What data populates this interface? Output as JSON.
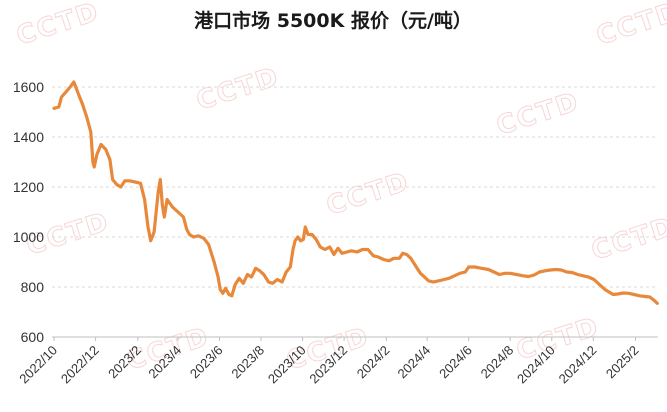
{
  "watermark": "CCTD",
  "chart_data": {
    "type": "line",
    "title": "港口市场 5500K 报价（元/吨）",
    "xlabel": "",
    "ylabel": "",
    "ylim": [
      600,
      1700
    ],
    "yticks": [
      600,
      800,
      1000,
      1200,
      1400,
      1600
    ],
    "x_ticks": [
      "2022/10",
      "2022/12",
      "2023/2",
      "2023/4",
      "2023/6",
      "2023/8",
      "2023/10",
      "2023/12",
      "2024/2",
      "2024/4",
      "2024/6",
      "2024/8",
      "2024/10",
      "2024/12",
      "2025/2"
    ],
    "grid": true,
    "colors": {
      "line": "#e8883a",
      "watermark": "#f3c9c9"
    },
    "series": [
      {
        "values": [
          [
            "2022-10-01",
            1515
          ],
          [
            "2022-10-08",
            1520
          ],
          [
            "2022-10-12",
            1560
          ],
          [
            "2022-10-20",
            1585
          ],
          [
            "2022-10-26",
            1605
          ],
          [
            "2022-10-30",
            1620
          ],
          [
            "2022-11-02",
            1600
          ],
          [
            "2022-11-06",
            1570
          ],
          [
            "2022-11-12",
            1530
          ],
          [
            "2022-11-18",
            1480
          ],
          [
            "2022-11-24",
            1420
          ],
          [
            "2022-11-27",
            1300
          ],
          [
            "2022-11-29",
            1280
          ],
          [
            "2022-12-03",
            1330
          ],
          [
            "2022-12-09",
            1370
          ],
          [
            "2022-12-16",
            1350
          ],
          [
            "2022-12-22",
            1310
          ],
          [
            "2022-12-26",
            1230
          ],
          [
            "2023-01-01",
            1210
          ],
          [
            "2023-01-07",
            1200
          ],
          [
            "2023-01-13",
            1225
          ],
          [
            "2023-01-20",
            1225
          ],
          [
            "2023-01-28",
            1220
          ],
          [
            "2023-02-05",
            1215
          ],
          [
            "2023-02-11",
            1150
          ],
          [
            "2023-02-16",
            1040
          ],
          [
            "2023-02-20",
            985
          ],
          [
            "2023-02-25",
            1020
          ],
          [
            "2023-03-03",
            1180
          ],
          [
            "2023-03-06",
            1230
          ],
          [
            "2023-03-09",
            1130
          ],
          [
            "2023-03-12",
            1080
          ],
          [
            "2023-03-16",
            1150
          ],
          [
            "2023-03-24",
            1120
          ],
          [
            "2023-04-01",
            1100
          ],
          [
            "2023-04-09",
            1080
          ],
          [
            "2023-04-14",
            1030
          ],
          [
            "2023-04-18",
            1010
          ],
          [
            "2023-04-24",
            1000
          ],
          [
            "2023-05-01",
            1005
          ],
          [
            "2023-05-09",
            995
          ],
          [
            "2023-05-16",
            970
          ],
          [
            "2023-05-24",
            900
          ],
          [
            "2023-05-30",
            840
          ],
          [
            "2023-06-02",
            790
          ],
          [
            "2023-06-06",
            775
          ],
          [
            "2023-06-10",
            795
          ],
          [
            "2023-06-15",
            770
          ],
          [
            "2023-06-19",
            765
          ],
          [
            "2023-06-24",
            810
          ],
          [
            "2023-06-30",
            835
          ],
          [
            "2023-07-06",
            815
          ],
          [
            "2023-07-12",
            850
          ],
          [
            "2023-07-18",
            840
          ],
          [
            "2023-07-24",
            875
          ],
          [
            "2023-07-30",
            865
          ],
          [
            "2023-08-05",
            850
          ],
          [
            "2023-08-12",
            820
          ],
          [
            "2023-08-18",
            815
          ],
          [
            "2023-08-25",
            830
          ],
          [
            "2023-09-01",
            820
          ],
          [
            "2023-09-07",
            860
          ],
          [
            "2023-09-13",
            880
          ],
          [
            "2023-09-17",
            950
          ],
          [
            "2023-09-20",
            985
          ],
          [
            "2023-09-24",
            1000
          ],
          [
            "2023-09-28",
            985
          ],
          [
            "2023-10-02",
            990
          ],
          [
            "2023-10-05",
            1040
          ],
          [
            "2023-10-09",
            1010
          ],
          [
            "2023-10-15",
            1010
          ],
          [
            "2023-10-21",
            990
          ],
          [
            "2023-10-27",
            960
          ],
          [
            "2023-11-03",
            950
          ],
          [
            "2023-11-10",
            960
          ],
          [
            "2023-11-16",
            930
          ],
          [
            "2023-11-22",
            955
          ],
          [
            "2023-11-28",
            935
          ],
          [
            "2023-12-05",
            940
          ],
          [
            "2023-12-12",
            945
          ],
          [
            "2023-12-20",
            940
          ],
          [
            "2023-12-28",
            950
          ],
          [
            "2024-01-05",
            950
          ],
          [
            "2024-01-13",
            925
          ],
          [
            "2024-01-20",
            920
          ],
          [
            "2024-01-28",
            910
          ],
          [
            "2024-02-05",
            905
          ],
          [
            "2024-02-12",
            915
          ],
          [
            "2024-02-20",
            915
          ],
          [
            "2024-02-25",
            935
          ],
          [
            "2024-03-02",
            930
          ],
          [
            "2024-03-08",
            915
          ],
          [
            "2024-03-16",
            880
          ],
          [
            "2024-03-22",
            855
          ],
          [
            "2024-03-28",
            840
          ],
          [
            "2024-04-03",
            825
          ],
          [
            "2024-04-10",
            820
          ],
          [
            "2024-04-18",
            825
          ],
          [
            "2024-04-26",
            830
          ],
          [
            "2024-05-03",
            835
          ],
          [
            "2024-05-11",
            845
          ],
          [
            "2024-05-19",
            855
          ],
          [
            "2024-05-27",
            860
          ],
          [
            "2024-06-01",
            880
          ],
          [
            "2024-06-10",
            880
          ],
          [
            "2024-06-20",
            875
          ],
          [
            "2024-06-30",
            870
          ],
          [
            "2024-07-08",
            860
          ],
          [
            "2024-07-16",
            850
          ],
          [
            "2024-07-24",
            855
          ],
          [
            "2024-08-01",
            855
          ],
          [
            "2024-08-10",
            850
          ],
          [
            "2024-08-20",
            845
          ],
          [
            "2024-08-28",
            842
          ],
          [
            "2024-09-05",
            848
          ],
          [
            "2024-09-13",
            860
          ],
          [
            "2024-09-21",
            865
          ],
          [
            "2024-09-29",
            868
          ],
          [
            "2024-10-07",
            870
          ],
          [
            "2024-10-15",
            868
          ],
          [
            "2024-10-23",
            860
          ],
          [
            "2024-10-31",
            858
          ],
          [
            "2024-11-08",
            850
          ],
          [
            "2024-11-16",
            845
          ],
          [
            "2024-11-24",
            840
          ],
          [
            "2024-12-02",
            830
          ],
          [
            "2024-12-10",
            810
          ],
          [
            "2024-12-18",
            790
          ],
          [
            "2024-12-24",
            780
          ],
          [
            "2024-12-30",
            770
          ],
          [
            "2025-01-06",
            772
          ],
          [
            "2025-01-14",
            776
          ],
          [
            "2025-01-22",
            775
          ],
          [
            "2025-01-30",
            770
          ],
          [
            "2025-02-07",
            765
          ],
          [
            "2025-02-15",
            762
          ],
          [
            "2025-02-22",
            760
          ],
          [
            "2025-03-01",
            745
          ],
          [
            "2025-03-05",
            735
          ]
        ]
      }
    ]
  }
}
